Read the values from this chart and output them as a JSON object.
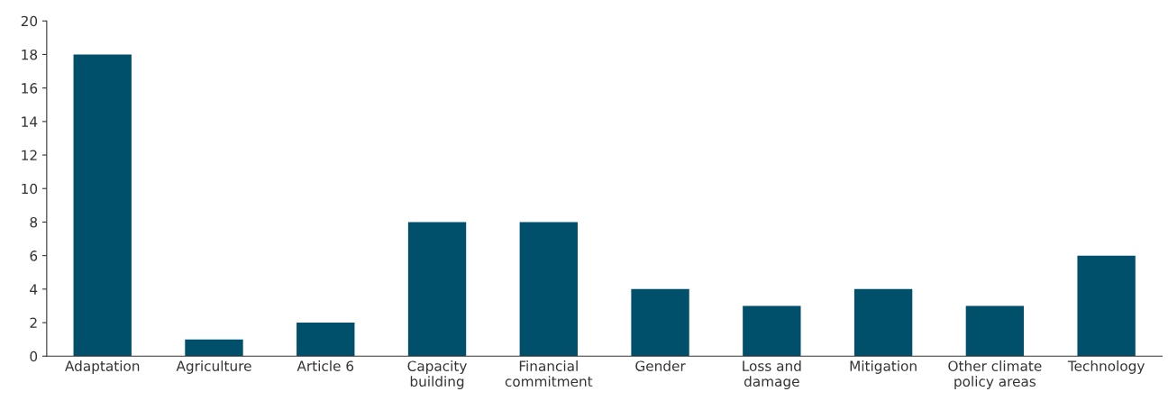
{
  "chart_data": {
    "type": "bar",
    "categories": [
      "Adaptation",
      "Agriculture",
      "Article 6",
      "Capacity building",
      "Financial commitment",
      "Gender",
      "Loss and damage",
      "Mitigation",
      "Other climate policy areas",
      "Technology"
    ],
    "values": [
      18,
      1,
      2,
      8,
      8,
      4,
      3,
      4,
      3,
      6
    ],
    "color": "#004f6b",
    "ylim": [
      0,
      20
    ],
    "yticks": [
      0,
      2,
      4,
      6,
      8,
      10,
      12,
      14,
      16,
      18,
      20
    ],
    "grid": false,
    "legend": false
  }
}
